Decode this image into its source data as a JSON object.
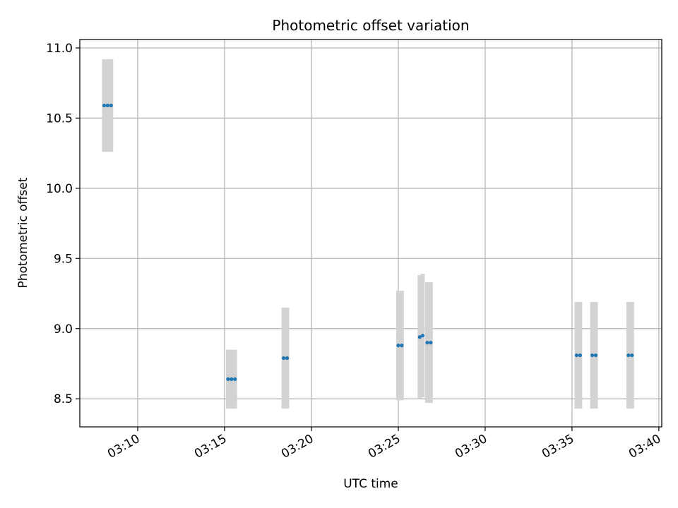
{
  "chart_data": {
    "type": "scatter",
    "title": "Photometric offset variation",
    "xlabel": "UTC time",
    "ylabel": "Photometric offset",
    "xlim": [
      "03:06:40",
      "03:40:10"
    ],
    "ylim": [
      8.3,
      11.06
    ],
    "x_ticks": [
      "03:10",
      "03:15",
      "03:20",
      "03:25",
      "03:30",
      "03:35",
      "03:40"
    ],
    "y_ticks": [
      8.5,
      9.0,
      9.5,
      10.0,
      10.5,
      11.0
    ],
    "y_tick_labels": [
      "8.5",
      "9.0",
      "9.5",
      "10.0",
      "10.5",
      "11.0"
    ],
    "grid": true,
    "colors": {
      "point": "#1f77b4",
      "errorbar": "#d3d3d3",
      "grid": "#b0b0b0"
    },
    "points": [
      {
        "time": "03:08:04",
        "y": 10.59,
        "yerr": 0.33
      },
      {
        "time": "03:08:16",
        "y": 10.59,
        "yerr": 0.33
      },
      {
        "time": "03:08:28",
        "y": 10.59,
        "yerr": 0.33
      },
      {
        "time": "03:15:12",
        "y": 8.64,
        "yerr": 0.21
      },
      {
        "time": "03:15:24",
        "y": 8.64,
        "yerr": 0.21
      },
      {
        "time": "03:15:36",
        "y": 8.64,
        "yerr": 0.21
      },
      {
        "time": "03:18:24",
        "y": 8.79,
        "yerr": 0.36
      },
      {
        "time": "03:18:36",
        "y": 8.79,
        "yerr": 0.36
      },
      {
        "time": "03:25:00",
        "y": 8.88,
        "yerr": 0.39
      },
      {
        "time": "03:25:12",
        "y": 8.88,
        "yerr": 0.39
      },
      {
        "time": "03:26:14",
        "y": 8.94,
        "yerr": 0.44
      },
      {
        "time": "03:26:24",
        "y": 8.95,
        "yerr": 0.44
      },
      {
        "time": "03:26:40",
        "y": 8.9,
        "yerr": 0.43
      },
      {
        "time": "03:26:52",
        "y": 8.9,
        "yerr": 0.43
      },
      {
        "time": "03:35:16",
        "y": 8.81,
        "yerr": 0.38
      },
      {
        "time": "03:35:28",
        "y": 8.81,
        "yerr": 0.38
      },
      {
        "time": "03:36:10",
        "y": 8.81,
        "yerr": 0.38
      },
      {
        "time": "03:36:22",
        "y": 8.81,
        "yerr": 0.38
      },
      {
        "time": "03:38:15",
        "y": 8.81,
        "yerr": 0.38
      },
      {
        "time": "03:38:27",
        "y": 8.81,
        "yerr": 0.38
      }
    ]
  }
}
